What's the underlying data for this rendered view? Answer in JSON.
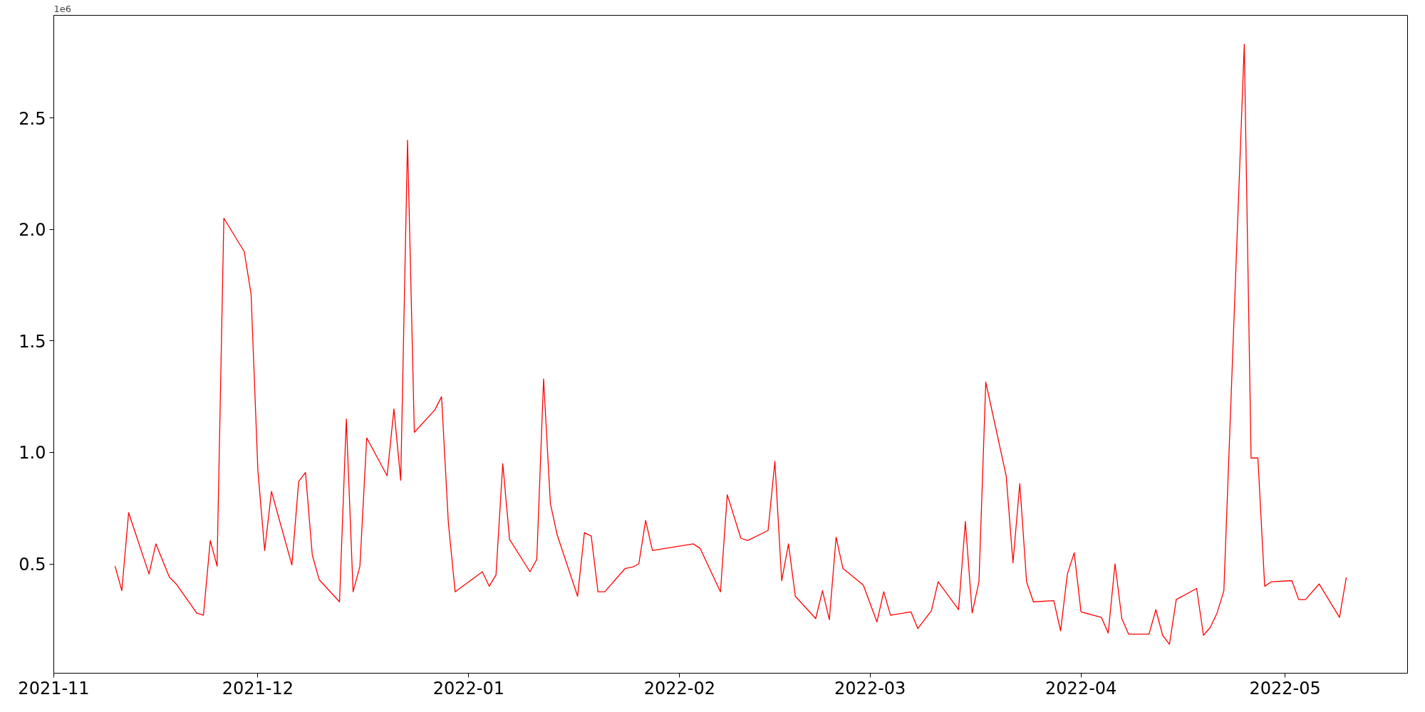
{
  "chart_data": {
    "type": "line",
    "annotations": [
      "1e6"
    ],
    "x": [
      "2021-11-10",
      "2021-11-11",
      "2021-11-12",
      "2021-11-15",
      "2021-11-16",
      "2021-11-18",
      "2021-11-19",
      "2021-11-22",
      "2021-11-23",
      "2021-11-24",
      "2021-11-25",
      "2021-11-26",
      "2021-11-29",
      "2021-11-30",
      "2021-12-01",
      "2021-12-02",
      "2021-12-03",
      "2021-12-06",
      "2021-12-07",
      "2021-12-08",
      "2021-12-09",
      "2021-12-10",
      "2021-12-13",
      "2021-12-14",
      "2021-12-15",
      "2021-12-16",
      "2021-12-17",
      "2021-12-20",
      "2021-12-21",
      "2021-12-22",
      "2021-12-23",
      "2021-12-24",
      "2021-12-27",
      "2021-12-28",
      "2021-12-29",
      "2021-12-30",
      "2022-01-03",
      "2022-01-04",
      "2022-01-05",
      "2022-01-06",
      "2022-01-07",
      "2022-01-10",
      "2022-01-11",
      "2022-01-12",
      "2022-01-13",
      "2022-01-14",
      "2022-01-17",
      "2022-01-18",
      "2022-01-19",
      "2022-01-20",
      "2022-01-21",
      "2022-01-24",
      "2022-01-25",
      "2022-01-26",
      "2022-01-27",
      "2022-01-28",
      "2022-02-03",
      "2022-02-04",
      "2022-02-07",
      "2022-02-08",
      "2022-02-10",
      "2022-02-11",
      "2022-02-14",
      "2022-02-15",
      "2022-02-16",
      "2022-02-17",
      "2022-02-18",
      "2022-02-21",
      "2022-02-22",
      "2022-02-23",
      "2022-02-24",
      "2022-02-25",
      "2022-02-28",
      "2022-03-02",
      "2022-03-03",
      "2022-03-04",
      "2022-03-07",
      "2022-03-08",
      "2022-03-10",
      "2022-03-11",
      "2022-03-14",
      "2022-03-15",
      "2022-03-16",
      "2022-03-17",
      "2022-03-18",
      "2022-03-21",
      "2022-03-22",
      "2022-03-23",
      "2022-03-24",
      "2022-03-25",
      "2022-03-28",
      "2022-03-29",
      "2022-03-30",
      "2022-03-31",
      "2022-04-01",
      "2022-04-04",
      "2022-04-05",
      "2022-04-06",
      "2022-04-07",
      "2022-04-08",
      "2022-04-11",
      "2022-04-12",
      "2022-04-13",
      "2022-04-14",
      "2022-04-15",
      "2022-04-18",
      "2022-04-19",
      "2022-04-20",
      "2022-04-21",
      "2022-04-22",
      "2022-04-25",
      "2022-04-26",
      "2022-04-27",
      "2022-04-28",
      "2022-04-29",
      "2022-05-02",
      "2022-05-03",
      "2022-05-04",
      "2022-05-06",
      "2022-05-09",
      "2022-05-10"
    ],
    "series": [
      {
        "color": "#ff0000",
        "values": [
          0.49,
          0.38,
          0.73,
          0.455,
          0.59,
          0.44,
          0.41,
          0.28,
          0.27,
          0.605,
          0.49,
          2.05,
          1.9,
          1.71,
          0.92,
          0.56,
          0.825,
          0.495,
          0.87,
          0.91,
          0.54,
          0.43,
          0.33,
          1.15,
          0.375,
          0.49,
          1.065,
          0.895,
          1.195,
          0.875,
          2.4,
          1.09,
          1.19,
          1.25,
          0.685,
          0.375,
          0.465,
          0.4,
          0.45,
          0.95,
          0.61,
          0.465,
          0.52,
          1.33,
          0.77,
          0.63,
          0.355,
          0.64,
          0.625,
          0.375,
          0.375,
          0.48,
          0.485,
          0.5,
          0.695,
          0.56,
          0.59,
          0.57,
          0.375,
          0.81,
          0.615,
          0.605,
          0.65,
          0.96,
          0.425,
          0.59,
          0.355,
          0.255,
          0.38,
          0.25,
          0.62,
          0.48,
          0.405,
          0.24,
          0.375,
          0.27,
          0.285,
          0.21,
          0.29,
          0.42,
          0.295,
          0.69,
          0.28,
          0.42,
          1.315,
          0.895,
          0.505,
          0.86,
          0.42,
          0.33,
          0.335,
          0.2,
          0.455,
          0.55,
          0.285,
          0.26,
          0.19,
          0.5,
          0.255,
          0.185,
          0.185,
          0.295,
          0.18,
          0.14,
          0.34,
          0.39,
          0.18,
          0.215,
          0.28,
          0.38,
          2.83,
          0.975,
          0.975,
          0.4,
          0.42,
          0.425,
          0.34,
          0.34,
          0.41,
          0.26,
          0.44
        ]
      }
    ],
    "xlim": [
      "2021-11-01",
      "2022-05-19"
    ],
    "xticks": [
      {
        "value": "2021-11-01",
        "label": "2021-11"
      },
      {
        "value": "2021-12-01",
        "label": "2021-12"
      },
      {
        "value": "2022-01-01",
        "label": "2022-01"
      },
      {
        "value": "2022-02-01",
        "label": "2022-02"
      },
      {
        "value": "2022-03-01",
        "label": "2022-03"
      },
      {
        "value": "2022-04-01",
        "label": "2022-04"
      },
      {
        "value": "2022-05-01",
        "label": "2022-05"
      }
    ],
    "ylim": [
      0.01,
      2.96
    ],
    "yticks": [
      0.5,
      {
        "value": 1,
        "label": "1.0"
      },
      1.5,
      {
        "value": 2,
        "label": "2.0"
      },
      2.5
    ],
    "grid": false,
    "line_style": "solid"
  }
}
